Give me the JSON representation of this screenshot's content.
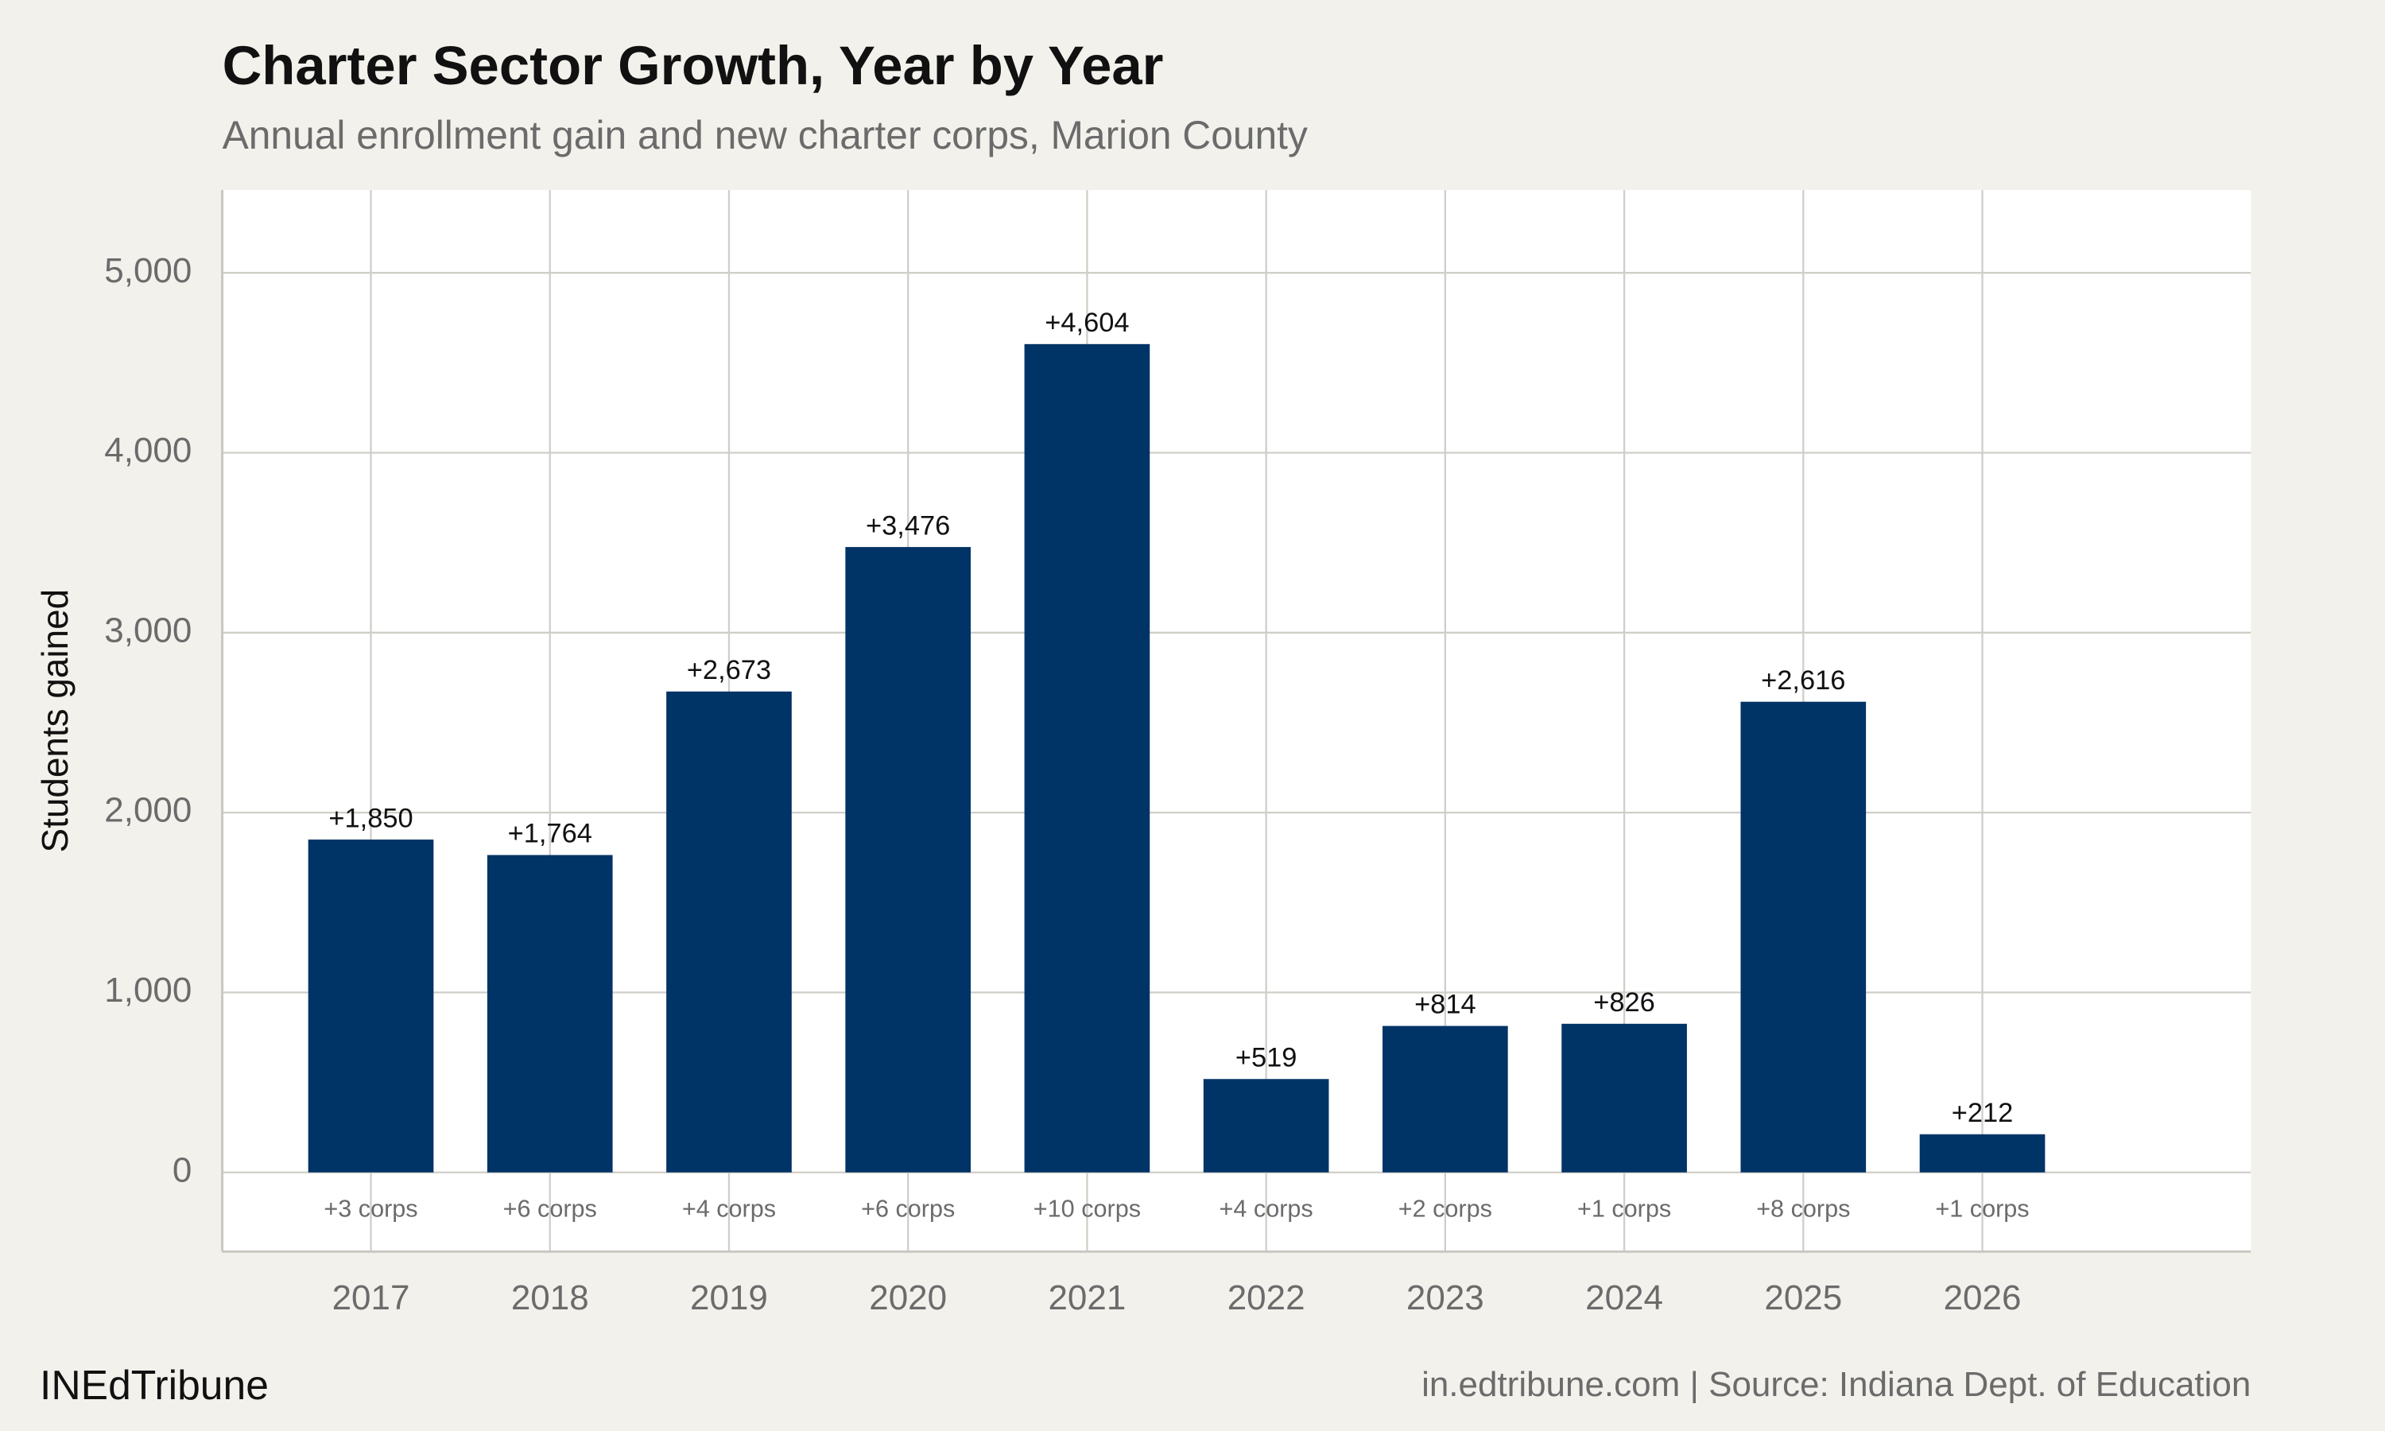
{
  "chart_data": {
    "type": "bar",
    "title": "Charter Sector Growth, Year by Year",
    "subtitle": "Annual enrollment gain and new charter corps, Marion County",
    "y_label": "Students gained",
    "x": [
      2017,
      2018,
      2019,
      2020,
      2021,
      2022,
      2023,
      2024,
      2025,
      2026
    ],
    "values": [
      1850,
      1764,
      2673,
      3476,
      4604,
      519,
      814,
      826,
      2616,
      212
    ],
    "value_labels": [
      "+1,850",
      "+1,764",
      "+2,673",
      "+3,476",
      "+4,604",
      "+519",
      "+814",
      "+826",
      "+2,616",
      "+212"
    ],
    "corps_labels": [
      "+3 corps",
      "+6 corps",
      "+4 corps",
      "+6 corps",
      "+10 corps",
      "+4 corps",
      "+2 corps",
      "+1 corps",
      "+8 corps",
      "+1 corps"
    ],
    "color": "#003366",
    "xlim": [
      2016.17,
      2027.5
    ],
    "xticks": [
      2017,
      2018,
      2019,
      2020,
      2021,
      2022,
      2023,
      2024,
      2025,
      2026
    ],
    "ylim": [
      -440,
      5460
    ],
    "yticks": [
      0,
      {
        "value": 1000,
        "label": "1,000"
      },
      {
        "value": 2000,
        "label": "2,000"
      },
      {
        "value": 3000,
        "label": "3,000"
      },
      {
        "value": 4000,
        "label": "4,000"
      },
      {
        "value": 5000,
        "label": "5,000"
      }
    ],
    "grid": true,
    "brand": "INEdTribune",
    "source": "in.edtribune.com | Source: Indiana Dept. of Education"
  }
}
